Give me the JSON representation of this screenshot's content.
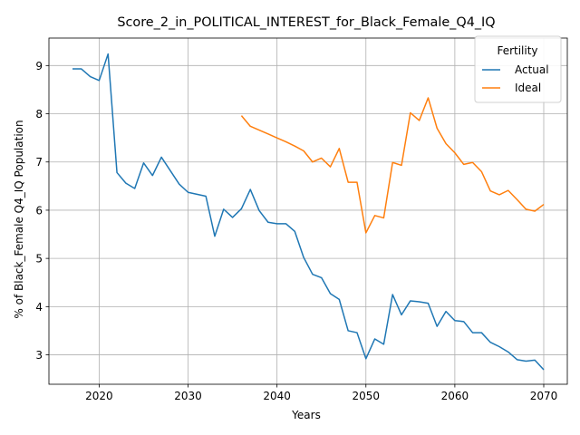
{
  "chart_data": {
    "type": "line",
    "title": "Score_2_in_POLITICAL_INTEREST_for_Black_Female_Q4_IQ",
    "xlabel": "Years",
    "ylabel": "% of Black_Female Q4_IQ Population",
    "xlim": [
      2014.35,
      2072.65
    ],
    "ylim": [
      2.39,
      9.57
    ],
    "xticks": [
      2020,
      2030,
      2040,
      2050,
      2060,
      2070
    ],
    "yticks": [
      3,
      4,
      5,
      6,
      7,
      8,
      9
    ],
    "grid": true,
    "legend": {
      "title": "Fertility",
      "placement": "upper right"
    },
    "series": [
      {
        "name": "Actual",
        "color": "#1f77b4",
        "x": [
          2017,
          2018,
          2019,
          2020,
          2021,
          2022,
          2023,
          2024,
          2025,
          2026,
          2027,
          2028,
          2029,
          2030,
          2031,
          2032,
          2033,
          2034,
          2035,
          2036,
          2037,
          2038,
          2039,
          2040,
          2041,
          2042,
          2043,
          2044,
          2045,
          2046,
          2047,
          2048,
          2049,
          2050,
          2051,
          2052,
          2053,
          2054,
          2055,
          2056,
          2057,
          2058,
          2059,
          2060,
          2061,
          2062,
          2063,
          2064,
          2065,
          2066,
          2067,
          2068,
          2069,
          2070
        ],
        "y": [
          8.93,
          8.93,
          8.77,
          8.69,
          9.24,
          6.78,
          6.56,
          6.45,
          6.98,
          6.72,
          7.1,
          6.82,
          6.54,
          6.37,
          6.33,
          6.29,
          5.46,
          6.02,
          5.85,
          6.03,
          6.43,
          5.99,
          5.75,
          5.72,
          5.72,
          5.56,
          5.02,
          4.67,
          4.6,
          4.27,
          4.15,
          3.5,
          3.46,
          2.92,
          3.33,
          3.22,
          4.25,
          3.83,
          4.12,
          4.1,
          4.07,
          3.59,
          3.9,
          3.71,
          3.69,
          3.46,
          3.46,
          3.26,
          3.17,
          3.06,
          2.9,
          2.87,
          2.89,
          2.69
        ]
      },
      {
        "name": "Ideal",
        "color": "#ff7f0e",
        "x": [
          2036,
          2037,
          2038,
          2039,
          2040,
          2041,
          2042,
          2043,
          2044,
          2045,
          2046,
          2047,
          2048,
          2049,
          2050,
          2051,
          2052,
          2053,
          2054,
          2055,
          2056,
          2057,
          2058,
          2059,
          2060,
          2061,
          2062,
          2063,
          2064,
          2065,
          2066,
          2067,
          2068,
          2069,
          2070
        ],
        "y": [
          7.96,
          7.74,
          7.66,
          7.58,
          7.5,
          7.42,
          7.33,
          7.23,
          7.0,
          7.08,
          6.9,
          7.28,
          6.58,
          6.58,
          5.53,
          5.89,
          5.84,
          6.99,
          6.93,
          8.02,
          7.86,
          8.33,
          7.7,
          7.38,
          7.19,
          6.95,
          6.99,
          6.8,
          6.4,
          6.32,
          6.41,
          6.22,
          6.02,
          5.98,
          6.12
        ]
      }
    ]
  }
}
